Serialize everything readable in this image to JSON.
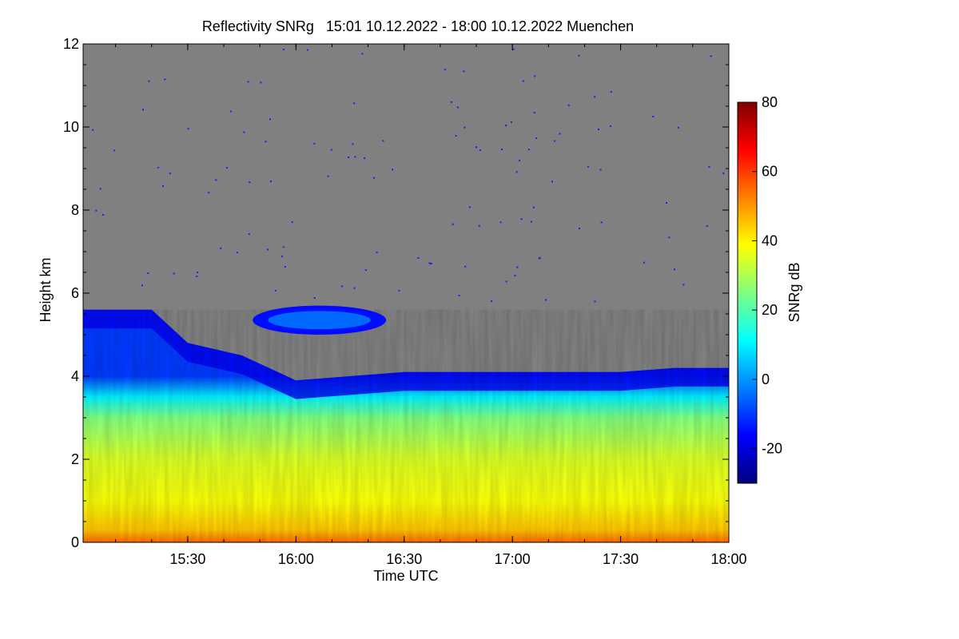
{
  "chart_data": {
    "type": "heatmap",
    "title": "Reflectivity SNRg   15:01 10.12.2022 - 18:00 10.12.2022 Muenchen",
    "xlabel": "Time UTC",
    "ylabel": "Height km",
    "colorbar_label": "SNRg dB",
    "xlim": [
      "15:01",
      "18:00"
    ],
    "x_ticks": [
      "15:30",
      "16:00",
      "16:30",
      "17:00",
      "17:30",
      "18:00"
    ],
    "ylim": [
      0,
      12
    ],
    "y_ticks": [
      0,
      2,
      4,
      6,
      8,
      10,
      12
    ],
    "colorbar_range": [
      -30,
      80
    ],
    "colorbar_ticks": [
      -20,
      0,
      20,
      40,
      60,
      80
    ],
    "background_color": "#808080",
    "colormap": [
      "#00007f",
      "#0000ff",
      "#0080ff",
      "#00ffff",
      "#80ff80",
      "#ffff00",
      "#ff8000",
      "#ff0000",
      "#7f0000"
    ],
    "echo_top_km": [
      [
        "15:01",
        5.6
      ],
      [
        "15:20",
        5.6
      ],
      [
        "15:30",
        4.8
      ],
      [
        "15:45",
        4.5
      ],
      [
        "16:00",
        3.9
      ],
      [
        "16:15",
        4.0
      ],
      [
        "16:30",
        4.1
      ],
      [
        "17:00",
        4.1
      ],
      [
        "17:30",
        4.1
      ],
      [
        "17:45",
        4.2
      ],
      [
        "18:00",
        4.2
      ]
    ],
    "elevated_layer": {
      "time_start": "15:48",
      "time_end": "16:25",
      "bottom_km": 5.0,
      "top_km": 5.7
    },
    "profile_snr_db": [
      [
        0.0,
        55
      ],
      [
        0.3,
        45
      ],
      [
        1.0,
        38
      ],
      [
        2.0,
        35
      ],
      [
        3.0,
        25
      ],
      [
        3.5,
        10
      ],
      [
        4.0,
        -10
      ]
    ]
  }
}
